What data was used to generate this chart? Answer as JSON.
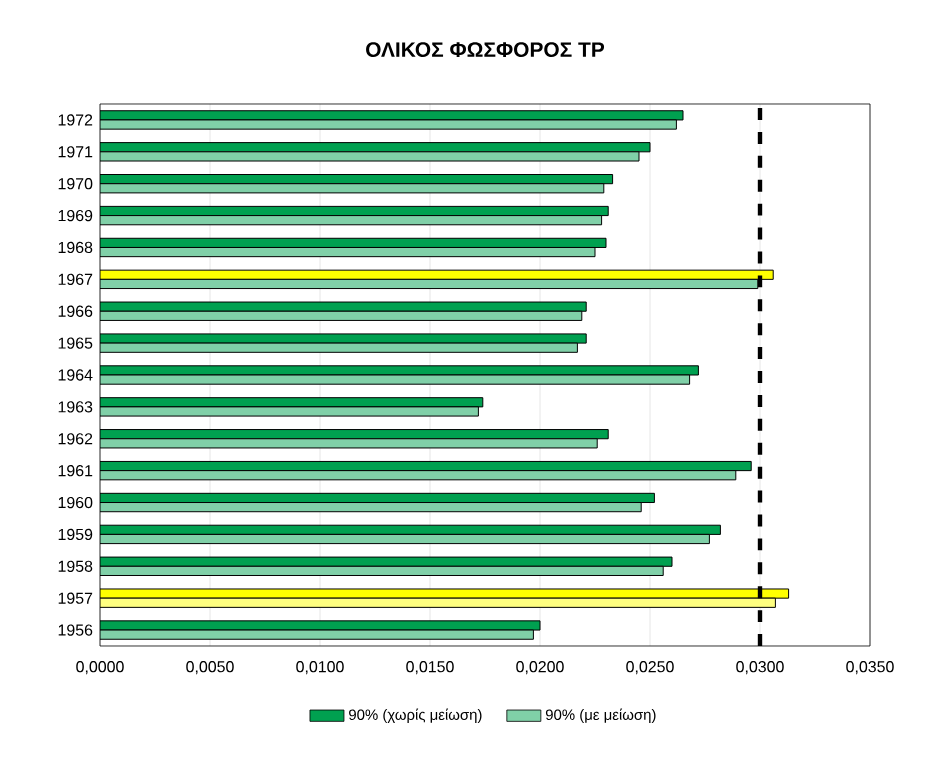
{
  "chart_data": {
    "type": "bar",
    "orientation": "horizontal",
    "title": "ΟΛΙΚΟΣ ΦΩΣΦΟΡΟΣ TP",
    "categories": [
      "1972",
      "1971",
      "1970",
      "1969",
      "1968",
      "1967",
      "1966",
      "1965",
      "1964",
      "1963",
      "1962",
      "1961",
      "1960",
      "1959",
      "1958",
      "1957",
      "1956"
    ],
    "series": [
      {
        "name": "90% (χωρίς μείωση)",
        "color": "#00a050",
        "colors": [
          "#00a050",
          "#00a050",
          "#00a050",
          "#00a050",
          "#00a050",
          "#ffff00",
          "#00a050",
          "#00a050",
          "#00a050",
          "#00a050",
          "#00a050",
          "#00a050",
          "#00a050",
          "#00a050",
          "#00a050",
          "#ffff00",
          "#00a050"
        ],
        "values": [
          0.0265,
          0.025,
          0.0233,
          0.0231,
          0.023,
          0.0306,
          0.0221,
          0.0221,
          0.0272,
          0.0174,
          0.0231,
          0.0296,
          0.0252,
          0.0282,
          0.026,
          0.0313,
          0.02
        ]
      },
      {
        "name": "90% (με μείωση)",
        "color": "#80d0a8",
        "colors": [
          "#80d0a8",
          "#80d0a8",
          "#80d0a8",
          "#80d0a8",
          "#80d0a8",
          "#80d0a8",
          "#80d0a8",
          "#80d0a8",
          "#80d0a8",
          "#80d0a8",
          "#80d0a8",
          "#80d0a8",
          "#80d0a8",
          "#80d0a8",
          "#80d0a8",
          "#ffff80",
          "#80d0a8"
        ],
        "values": [
          0.0262,
          0.0245,
          0.0229,
          0.0228,
          0.0225,
          0.0299,
          0.0219,
          0.0217,
          0.0268,
          0.0172,
          0.0226,
          0.0289,
          0.0246,
          0.0277,
          0.0256,
          0.0307,
          0.0197
        ]
      }
    ],
    "xlim": [
      0,
      0.035
    ],
    "xticks": [
      {
        "value": 0,
        "label": "0,0000"
      },
      {
        "value": 0.005,
        "label": "0,0050"
      },
      {
        "value": 0.01,
        "label": "0,0100"
      },
      {
        "value": 0.015,
        "label": "0,0150"
      },
      {
        "value": 0.02,
        "label": "0,0200"
      },
      {
        "value": 0.025,
        "label": "0,0250"
      },
      {
        "value": 0.03,
        "label": "0,0300"
      },
      {
        "value": 0.035,
        "label": "0,0350"
      }
    ],
    "ref_lines": [
      {
        "axis": "x",
        "value": 0.03,
        "color": "#000000",
        "line_style": "dashed"
      }
    ],
    "grid": "x",
    "legend": "bottom"
  }
}
